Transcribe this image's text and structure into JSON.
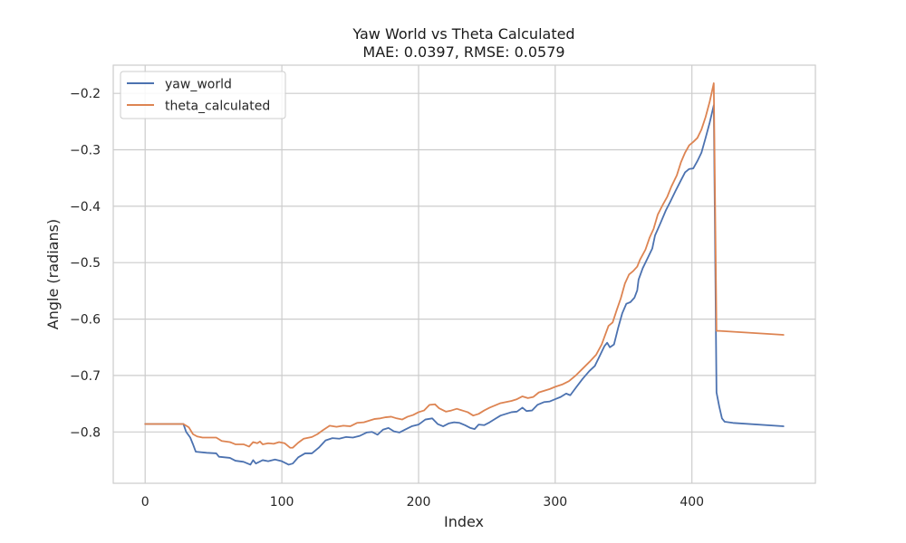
{
  "chart_data": {
    "type": "line",
    "title": "Yaw World vs Theta Calculated",
    "subtitle": "MAE: 0.0397, RMSE: 0.0579",
    "xlabel": "Index",
    "ylabel": "Angle (radians)",
    "xlim": [
      -23.35,
      490.35
    ],
    "ylim": [
      -0.891,
      -0.15
    ],
    "xticks": [
      0,
      100,
      200,
      300,
      400
    ],
    "yticks": [
      -0.8,
      -0.7,
      -0.6,
      -0.5,
      -0.4,
      -0.3,
      -0.2
    ],
    "xtick_labels": [
      "0",
      "100",
      "200",
      "300",
      "400"
    ],
    "ytick_labels": [
      "−0.8",
      "−0.7",
      "−0.6",
      "−0.5",
      "−0.4",
      "−0.3",
      "−0.2"
    ],
    "grid": true,
    "legend_position": "top-left",
    "series": [
      {
        "name": "yaw_world",
        "color": "#4c72b0",
        "points": [
          [
            0,
            -0.786
          ],
          [
            28,
            -0.786
          ],
          [
            30,
            -0.8
          ],
          [
            33,
            -0.81
          ],
          [
            35,
            -0.822
          ],
          [
            37,
            -0.835
          ],
          [
            45,
            -0.837
          ],
          [
            52,
            -0.838
          ],
          [
            54,
            -0.844
          ],
          [
            62,
            -0.846
          ],
          [
            66,
            -0.851
          ],
          [
            72,
            -0.853
          ],
          [
            77,
            -0.858
          ],
          [
            79,
            -0.85
          ],
          [
            81,
            -0.856
          ],
          [
            86,
            -0.85
          ],
          [
            90,
            -0.852
          ],
          [
            95,
            -0.849
          ],
          [
            100,
            -0.852
          ],
          [
            105,
            -0.858
          ],
          [
            108,
            -0.856
          ],
          [
            112,
            -0.845
          ],
          [
            117,
            -0.838
          ],
          [
            122,
            -0.838
          ],
          [
            127,
            -0.828
          ],
          [
            132,
            -0.815
          ],
          [
            137,
            -0.811
          ],
          [
            142,
            -0.812
          ],
          [
            147,
            -0.809
          ],
          [
            152,
            -0.81
          ],
          [
            157,
            -0.807
          ],
          [
            162,
            -0.801
          ],
          [
            166,
            -0.8
          ],
          [
            170,
            -0.805
          ],
          [
            174,
            -0.796
          ],
          [
            178,
            -0.793
          ],
          [
            182,
            -0.799
          ],
          [
            186,
            -0.801
          ],
          [
            190,
            -0.796
          ],
          [
            195,
            -0.79
          ],
          [
            200,
            -0.787
          ],
          [
            205,
            -0.778
          ],
          [
            210,
            -0.776
          ],
          [
            214,
            -0.786
          ],
          [
            218,
            -0.79
          ],
          [
            222,
            -0.785
          ],
          [
            226,
            -0.783
          ],
          [
            230,
            -0.784
          ],
          [
            234,
            -0.788
          ],
          [
            238,
            -0.793
          ],
          [
            241,
            -0.795
          ],
          [
            244,
            -0.787
          ],
          [
            248,
            -0.788
          ],
          [
            252,
            -0.783
          ],
          [
            256,
            -0.777
          ],
          [
            260,
            -0.771
          ],
          [
            264,
            -0.768
          ],
          [
            268,
            -0.765
          ],
          [
            272,
            -0.764
          ],
          [
            276,
            -0.757
          ],
          [
            279,
            -0.763
          ],
          [
            283,
            -0.762
          ],
          [
            287,
            -0.752
          ],
          [
            292,
            -0.747
          ],
          [
            296,
            -0.746
          ],
          [
            300,
            -0.742
          ],
          [
            304,
            -0.738
          ],
          [
            308,
            -0.732
          ],
          [
            311,
            -0.735
          ],
          [
            315,
            -0.722
          ],
          [
            320,
            -0.706
          ],
          [
            325,
            -0.692
          ],
          [
            329,
            -0.683
          ],
          [
            333,
            -0.663
          ],
          [
            336,
            -0.648
          ],
          [
            338,
            -0.642
          ],
          [
            340,
            -0.65
          ],
          [
            343,
            -0.645
          ],
          [
            346,
            -0.616
          ],
          [
            349,
            -0.59
          ],
          [
            352,
            -0.573
          ],
          [
            355,
            -0.57
          ],
          [
            358,
            -0.562
          ],
          [
            360,
            -0.549
          ],
          [
            361,
            -0.53
          ],
          [
            364,
            -0.51
          ],
          [
            368,
            -0.49
          ],
          [
            371,
            -0.475
          ],
          [
            373,
            -0.452
          ],
          [
            377,
            -0.43
          ],
          [
            381,
            -0.407
          ],
          [
            384,
            -0.393
          ],
          [
            388,
            -0.373
          ],
          [
            392,
            -0.354
          ],
          [
            395,
            -0.34
          ],
          [
            398,
            -0.334
          ],
          [
            401,
            -0.333
          ],
          [
            404,
            -0.32
          ],
          [
            407,
            -0.305
          ],
          [
            410,
            -0.279
          ],
          [
            413,
            -0.252
          ],
          [
            416,
            -0.221
          ],
          [
            418,
            -0.73
          ],
          [
            420,
            -0.755
          ],
          [
            422,
            -0.776
          ],
          [
            424,
            -0.782
          ],
          [
            430,
            -0.784
          ],
          [
            467,
            -0.79
          ]
        ]
      },
      {
        "name": "theta_calculated",
        "color": "#dd8452",
        "points": [
          [
            0,
            -0.786
          ],
          [
            28,
            -0.786
          ],
          [
            32,
            -0.792
          ],
          [
            35,
            -0.804
          ],
          [
            38,
            -0.808
          ],
          [
            42,
            -0.81
          ],
          [
            52,
            -0.81
          ],
          [
            56,
            -0.816
          ],
          [
            62,
            -0.818
          ],
          [
            66,
            -0.822
          ],
          [
            72,
            -0.822
          ],
          [
            76,
            -0.826
          ],
          [
            79,
            -0.818
          ],
          [
            82,
            -0.82
          ],
          [
            84,
            -0.817
          ],
          [
            86,
            -0.822
          ],
          [
            90,
            -0.82
          ],
          [
            94,
            -0.821
          ],
          [
            98,
            -0.818
          ],
          [
            102,
            -0.82
          ],
          [
            106,
            -0.828
          ],
          [
            108,
            -0.828
          ],
          [
            112,
            -0.819
          ],
          [
            116,
            -0.812
          ],
          [
            122,
            -0.809
          ],
          [
            126,
            -0.804
          ],
          [
            130,
            -0.797
          ],
          [
            135,
            -0.789
          ],
          [
            140,
            -0.791
          ],
          [
            145,
            -0.789
          ],
          [
            150,
            -0.79
          ],
          [
            155,
            -0.784
          ],
          [
            160,
            -0.783
          ],
          [
            164,
            -0.78
          ],
          [
            168,
            -0.777
          ],
          [
            172,
            -0.776
          ],
          [
            176,
            -0.774
          ],
          [
            180,
            -0.773
          ],
          [
            184,
            -0.776
          ],
          [
            188,
            -0.778
          ],
          [
            192,
            -0.773
          ],
          [
            196,
            -0.77
          ],
          [
            200,
            -0.765
          ],
          [
            204,
            -0.762
          ],
          [
            208,
            -0.752
          ],
          [
            212,
            -0.751
          ],
          [
            215,
            -0.758
          ],
          [
            220,
            -0.764
          ],
          [
            224,
            -0.762
          ],
          [
            228,
            -0.759
          ],
          [
            232,
            -0.762
          ],
          [
            236,
            -0.765
          ],
          [
            240,
            -0.771
          ],
          [
            244,
            -0.768
          ],
          [
            248,
            -0.762
          ],
          [
            252,
            -0.757
          ],
          [
            256,
            -0.753
          ],
          [
            260,
            -0.749
          ],
          [
            264,
            -0.747
          ],
          [
            268,
            -0.745
          ],
          [
            272,
            -0.742
          ],
          [
            276,
            -0.737
          ],
          [
            280,
            -0.74
          ],
          [
            284,
            -0.738
          ],
          [
            288,
            -0.73
          ],
          [
            292,
            -0.727
          ],
          [
            296,
            -0.724
          ],
          [
            300,
            -0.72
          ],
          [
            305,
            -0.716
          ],
          [
            310,
            -0.71
          ],
          [
            315,
            -0.7
          ],
          [
            320,
            -0.688
          ],
          [
            325,
            -0.676
          ],
          [
            330,
            -0.663
          ],
          [
            334,
            -0.645
          ],
          [
            337,
            -0.625
          ],
          [
            339,
            -0.612
          ],
          [
            342,
            -0.606
          ],
          [
            345,
            -0.584
          ],
          [
            348,
            -0.563
          ],
          [
            351,
            -0.537
          ],
          [
            354,
            -0.521
          ],
          [
            357,
            -0.515
          ],
          [
            360,
            -0.507
          ],
          [
            362,
            -0.495
          ],
          [
            366,
            -0.477
          ],
          [
            369,
            -0.456
          ],
          [
            372,
            -0.44
          ],
          [
            375,
            -0.415
          ],
          [
            379,
            -0.396
          ],
          [
            382,
            -0.383
          ],
          [
            385,
            -0.365
          ],
          [
            389,
            -0.345
          ],
          [
            392,
            -0.322
          ],
          [
            395,
            -0.305
          ],
          [
            398,
            -0.292
          ],
          [
            401,
            -0.286
          ],
          [
            404,
            -0.279
          ],
          [
            407,
            -0.264
          ],
          [
            410,
            -0.242
          ],
          [
            413,
            -0.215
          ],
          [
            416,
            -0.182
          ],
          [
            418,
            -0.621
          ],
          [
            420,
            -0.621
          ],
          [
            467,
            -0.628
          ]
        ]
      }
    ]
  }
}
